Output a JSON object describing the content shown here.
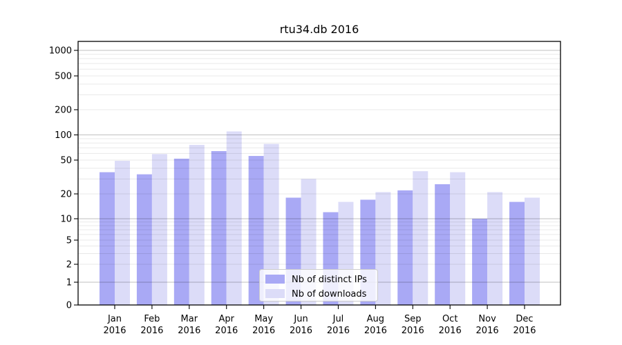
{
  "chart_data": {
    "type": "bar",
    "title": "rtu34.db 2016",
    "categories": [
      "Jan",
      "Feb",
      "Mar",
      "Apr",
      "May",
      "Jun",
      "Jul",
      "Aug",
      "Sep",
      "Oct",
      "Nov",
      "Dec"
    ],
    "year_label": "2016",
    "series": [
      {
        "name": "Nb of distinct IPs",
        "color": "#a9a9f5",
        "values": [
          36,
          34,
          52,
          64,
          56,
          18,
          12,
          17,
          22,
          26,
          10,
          16
        ]
      },
      {
        "name": "Nb of downloads",
        "color": "#dcdcf8",
        "values": [
          49,
          59,
          76,
          110,
          78,
          30,
          16,
          21,
          37,
          36,
          21,
          18
        ]
      }
    ],
    "xlabel": "",
    "ylabel": "",
    "yscale": "symlog-like",
    "y_tick_labels": [
      0,
      1,
      2,
      5,
      10,
      20,
      50,
      100,
      200,
      500,
      1000
    ],
    "ylim": [
      0,
      1200
    ],
    "grid": true,
    "legend_position": "lower-center",
    "colors": {
      "frame": "#000000",
      "grid_major": "rgba(0,0,0,0.25)",
      "grid_minor": "rgba(0,0,0,0.09)",
      "legend_border": "#cccccc",
      "legend_background": "#ffffff"
    }
  }
}
